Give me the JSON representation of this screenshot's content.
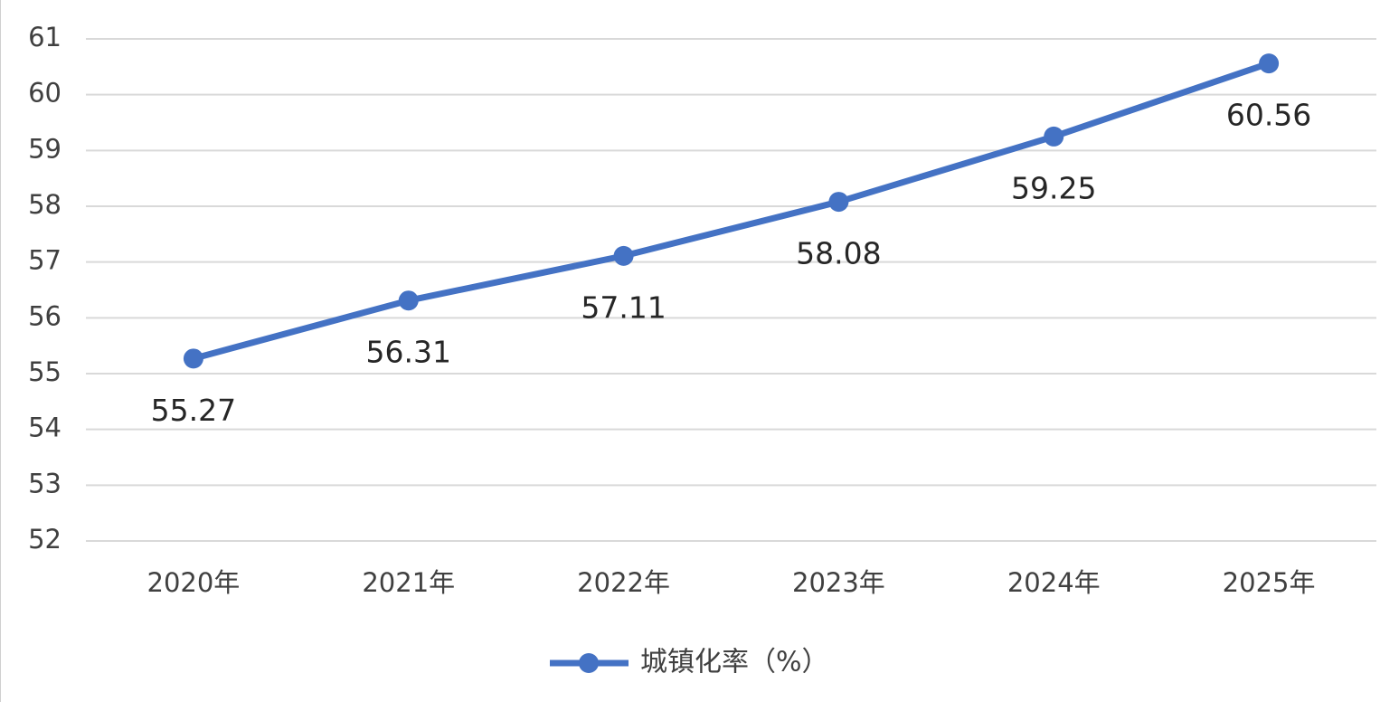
{
  "chart_data": {
    "type": "line",
    "categories": [
      "2020年",
      "2021年",
      "2022年",
      "2023年",
      "2024年",
      "2025年"
    ],
    "series": [
      {
        "name": "城镇化率（%）",
        "color": "#4472c4",
        "values": [
          55.27,
          56.31,
          57.11,
          58.08,
          59.25,
          60.56
        ]
      }
    ],
    "ylim": [
      52,
      61
    ],
    "yticks": [
      52,
      53,
      54,
      55,
      56,
      57,
      58,
      59,
      60,
      61
    ],
    "grid": true,
    "legend": "bottom"
  }
}
